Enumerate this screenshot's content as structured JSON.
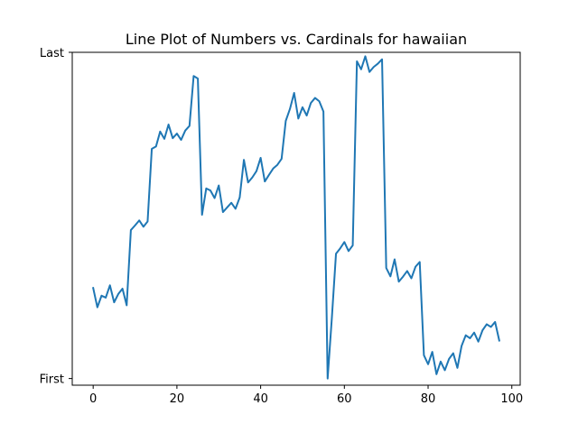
{
  "chart_data": {
    "type": "line",
    "title": "Line Plot of Numbers vs. Cardinals for hawaiian",
    "xlabel": "",
    "ylabel": "",
    "xlim": [
      -5,
      102
    ],
    "ylim": [
      0,
      1
    ],
    "x_ticks": [
      0,
      20,
      40,
      60,
      80,
      100
    ],
    "x_tick_labels": [
      "0",
      "20",
      "40",
      "60",
      "80",
      "100"
    ],
    "y_ticks": [
      0.02,
      1.0
    ],
    "y_tick_labels": [
      "First",
      "Last"
    ],
    "grid": false,
    "line_color": "#1f77b4",
    "series": [
      {
        "x": [
          0,
          1,
          2,
          3,
          4,
          5,
          6,
          7,
          8,
          9,
          10,
          11,
          12,
          13,
          14,
          15,
          16,
          17,
          18,
          19,
          20,
          21,
          22,
          23,
          24,
          25,
          26,
          27,
          28,
          29,
          30,
          31,
          32,
          33,
          34,
          35,
          36,
          37,
          38,
          39,
          40,
          41,
          42,
          43,
          44,
          45,
          46,
          47,
          48,
          49,
          50,
          51,
          52,
          53,
          54,
          55,
          56,
          57,
          58,
          59,
          60,
          61,
          62,
          63,
          64,
          65,
          66,
          67,
          68,
          69,
          70,
          71,
          72,
          73,
          74,
          75,
          76,
          77,
          78,
          79,
          80,
          81,
          82,
          83,
          84,
          85,
          86,
          87,
          88,
          89,
          90,
          91,
          92,
          93,
          94,
          95,
          96,
          97
        ],
        "values": [
          0.292,
          0.234,
          0.269,
          0.263,
          0.3,
          0.249,
          0.274,
          0.29,
          0.24,
          0.466,
          0.48,
          0.495,
          0.476,
          0.492,
          0.71,
          0.717,
          0.762,
          0.74,
          0.783,
          0.742,
          0.756,
          0.737,
          0.765,
          0.779,
          0.929,
          0.921,
          0.512,
          0.591,
          0.585,
          0.562,
          0.6,
          0.52,
          0.534,
          0.548,
          0.53,
          0.564,
          0.677,
          0.609,
          0.624,
          0.643,
          0.683,
          0.612,
          0.632,
          0.651,
          0.662,
          0.68,
          0.794,
          0.83,
          0.878,
          0.801,
          0.835,
          0.81,
          0.848,
          0.863,
          0.853,
          0.822,
          0.02,
          0.2,
          0.395,
          0.411,
          0.43,
          0.403,
          0.42,
          0.973,
          0.949,
          0.988,
          0.941,
          0.956,
          0.966,
          0.979,
          0.352,
          0.327,
          0.378,
          0.311,
          0.326,
          0.343,
          0.321,
          0.356,
          0.37,
          0.09,
          0.063,
          0.1,
          0.033,
          0.071,
          0.045,
          0.079,
          0.096,
          0.052,
          0.118,
          0.15,
          0.141,
          0.158,
          0.131,
          0.165,
          0.183,
          0.175,
          0.19,
          0.134
        ]
      }
    ]
  }
}
